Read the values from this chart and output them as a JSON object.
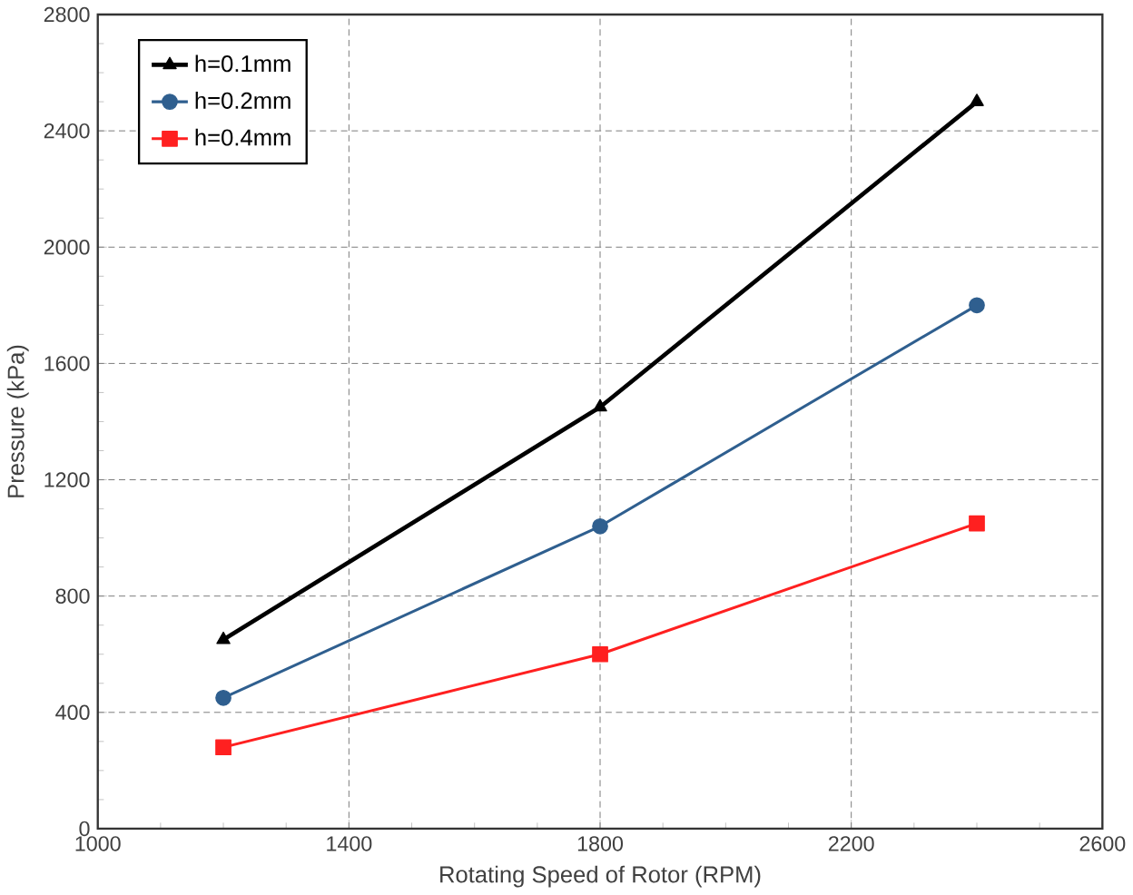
{
  "chart_data": {
    "type": "line",
    "xlabel": "Rotating Speed of Rotor (RPM)",
    "ylabel": "Pressure  (kPa)",
    "x": [
      1200,
      1800,
      2400
    ],
    "series": [
      {
        "name": "h=0.1mm",
        "color": "#000000",
        "marker": "triangle",
        "values": [
          650,
          1450,
          2500
        ]
      },
      {
        "name": "h=0.2mm",
        "color": "#2f5f8f",
        "marker": "circle",
        "values": [
          450,
          1040,
          1800
        ]
      },
      {
        "name": "h=0.4mm",
        "color": "#ff2020",
        "marker": "square",
        "values": [
          280,
          600,
          1050
        ]
      }
    ],
    "xlim": [
      1000,
      2600
    ],
    "xticks": [
      1000,
      1400,
      1800,
      2200,
      2600
    ],
    "ylim": [
      0,
      2800
    ],
    "yticks": [
      0,
      400,
      800,
      1200,
      1600,
      2000,
      2400,
      2800
    ],
    "grid": true,
    "legend": "top left"
  }
}
